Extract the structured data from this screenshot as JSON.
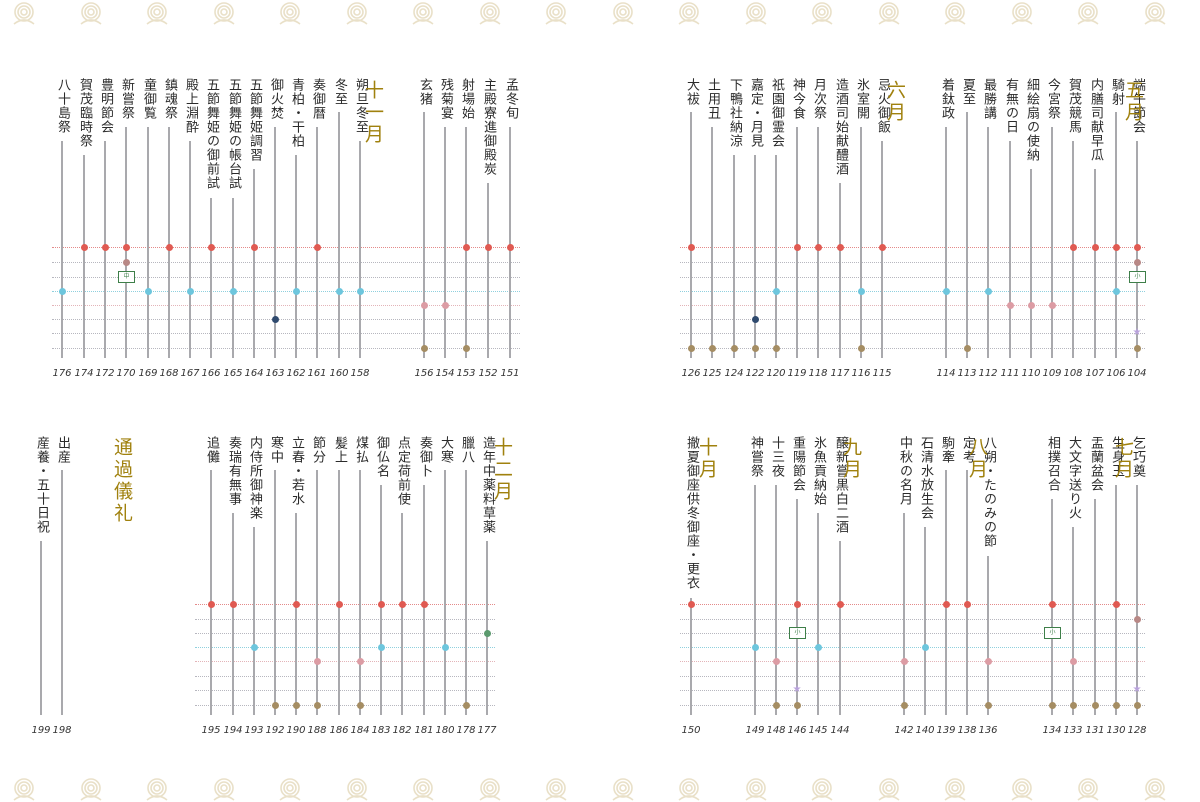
{
  "colors": {
    "accent": "#a0810e",
    "red": "#e05a52",
    "cyan": "#6dc6dd",
    "rose": "#dc9ca4",
    "tan": "#a58d63",
    "navy": "#2f4a6e",
    "mauve": "#b88886",
    "green": "#5b9a6e",
    "lavender": "#b9a2dc",
    "grid": "#b7b7bf",
    "ornament": "#e9e0c8"
  },
  "months": [
    {
      "id": "m5",
      "label": "五月"
    },
    {
      "id": "m6",
      "label": "六月"
    },
    {
      "id": "m11",
      "label": "十一月"
    },
    {
      "id": "m7",
      "label": "七月"
    },
    {
      "id": "m8",
      "label": "八月"
    },
    {
      "id": "m9",
      "label": "九月"
    },
    {
      "id": "m10",
      "label": "十月"
    },
    {
      "id": "m12",
      "label": "十二月"
    },
    {
      "id": "rites",
      "label": "通過儀礼"
    }
  ],
  "tags": {
    "chuka": "中",
    "shoka": "小"
  },
  "events": [
    {
      "name": "孟冬旬",
      "page": "151",
      "marks": [
        "red"
      ]
    },
    {
      "name": "主殿寮進御殿炭",
      "page": "152",
      "marks": [
        "red"
      ]
    },
    {
      "name": "射場始",
      "page": "153",
      "marks": [
        "red",
        "tan"
      ]
    },
    {
      "name": "残菊宴",
      "page": "154",
      "marks": [
        "rose"
      ]
    },
    {
      "name": "玄猪",
      "page": "156",
      "marks": [
        "rose",
        "tan"
      ]
    },
    {
      "name": "朔旦冬至",
      "page": "158",
      "marks": [
        "cyan"
      ]
    },
    {
      "name": "冬至",
      "page": "160",
      "marks": [
        "cyan"
      ]
    },
    {
      "name": "奏御暦",
      "page": "161",
      "marks": [
        "red"
      ]
    },
    {
      "name": "青柏・干柏",
      "page": "162",
      "marks": [
        "cyan"
      ]
    },
    {
      "name": "御火焚",
      "page": "163",
      "marks": [
        "navy"
      ]
    },
    {
      "name": "五節舞姫調習",
      "page": "164",
      "marks": [
        "red"
      ]
    },
    {
      "name": "五節舞姫の帳台試",
      "page": "165",
      "marks": [
        "cyan"
      ]
    },
    {
      "name": "五節舞姫の御前試",
      "page": "166",
      "marks": [
        "red"
      ]
    },
    {
      "name": "殿上淵酔",
      "page": "167",
      "marks": [
        "cyan"
      ]
    },
    {
      "name": "鎮魂祭",
      "page": "168",
      "marks": [
        "red"
      ]
    },
    {
      "name": "童御覧",
      "page": "169",
      "marks": [
        "cyan"
      ]
    },
    {
      "name": "新嘗祭",
      "page": "170",
      "marks": [
        "red",
        "mauve"
      ],
      "tag": "chuka"
    },
    {
      "name": "豊明節会",
      "page": "172",
      "marks": [
        "red"
      ]
    },
    {
      "name": "賀茂臨時祭",
      "page": "174",
      "marks": [
        "red"
      ]
    },
    {
      "name": "八十島祭",
      "page": "176",
      "marks": [
        "cyan"
      ]
    },
    {
      "name": "端午節会",
      "page": "104",
      "marks": [
        "red",
        "mauve",
        "lavender",
        "tan"
      ],
      "tag": "shoka"
    },
    {
      "name": "騎射",
      "page": "106",
      "marks": [
        "red",
        "cyan"
      ]
    },
    {
      "name": "内膳司献早瓜",
      "page": "107",
      "marks": [
        "red"
      ]
    },
    {
      "name": "賀茂競馬",
      "page": "108",
      "marks": [
        "red"
      ]
    },
    {
      "name": "今宮祭",
      "page": "109",
      "marks": [
        "rose"
      ]
    },
    {
      "name": "細絵扇の使納",
      "page": "110",
      "marks": [
        "rose"
      ]
    },
    {
      "name": "有無の日",
      "page": "111",
      "marks": [
        "rose"
      ]
    },
    {
      "name": "最勝講",
      "page": "112",
      "marks": [
        "cyan"
      ]
    },
    {
      "name": "夏至",
      "page": "113",
      "marks": [
        "tan"
      ]
    },
    {
      "name": "着鈦政",
      "page": "114",
      "marks": [
        "cyan"
      ]
    },
    {
      "name": "忌火御飯",
      "page": "115",
      "marks": [
        "red"
      ]
    },
    {
      "name": "氷室開",
      "page": "116",
      "marks": [
        "cyan",
        "tan"
      ]
    },
    {
      "name": "造酒司始献醴酒",
      "page": "117",
      "marks": [
        "red"
      ]
    },
    {
      "name": "月次祭",
      "page": "118",
      "marks": [
        "red"
      ]
    },
    {
      "name": "神今食",
      "page": "119",
      "marks": [
        "red"
      ]
    },
    {
      "name": "祇園御霊会",
      "page": "120",
      "marks": [
        "cyan",
        "tan"
      ]
    },
    {
      "name": "嘉定・月見",
      "page": "122",
      "marks": [
        "navy",
        "tan"
      ]
    },
    {
      "name": "下鴨社納涼",
      "page": "124",
      "marks": [
        "tan"
      ]
    },
    {
      "name": "土用丑",
      "page": "125",
      "marks": [
        "tan"
      ]
    },
    {
      "name": "大祓",
      "page": "126",
      "marks": [
        "red",
        "tan"
      ]
    },
    {
      "name": "乞巧奠",
      "page": "128",
      "marks": [
        "mauve",
        "lavender",
        "tan"
      ]
    },
    {
      "name": "生身玉",
      "page": "130",
      "marks": [
        "red",
        "tan"
      ]
    },
    {
      "name": "盂蘭盆会",
      "page": "131",
      "marks": [
        "tan"
      ]
    },
    {
      "name": "大文字送り火",
      "page": "133",
      "marks": [
        "rose",
        "tan"
      ]
    },
    {
      "name": "相撲召合",
      "page": "134",
      "marks": [
        "red",
        "tan"
      ],
      "tag": "shoka"
    },
    {
      "name": "八朔・たのみの節",
      "page": "136",
      "marks": [
        "rose",
        "tan"
      ]
    },
    {
      "name": "定考",
      "page": "138",
      "marks": [
        "red"
      ]
    },
    {
      "name": "駒牽",
      "page": "139",
      "marks": [
        "red"
      ]
    },
    {
      "name": "石清水放生会",
      "page": "140",
      "marks": [
        "cyan"
      ]
    },
    {
      "name": "中秋の名月",
      "page": "142",
      "marks": [
        "rose",
        "tan"
      ]
    },
    {
      "name": "醸新嘗黒白二酒",
      "page": "144",
      "marks": [
        "red"
      ]
    },
    {
      "name": "氷魚貢納始",
      "page": "145",
      "marks": [
        "cyan"
      ]
    },
    {
      "name": "重陽節会",
      "page": "146",
      "marks": [
        "red",
        "lavender",
        "tan"
      ],
      "tag": "shoka"
    },
    {
      "name": "十三夜",
      "page": "148",
      "marks": [
        "rose",
        "tan"
      ]
    },
    {
      "name": "神嘗祭",
      "page": "149",
      "marks": [
        "cyan"
      ]
    },
    {
      "name": "撤夏御座供冬御座・更衣",
      "page": "150",
      "marks": [
        "red"
      ]
    },
    {
      "name": "造年中薬料草薬",
      "page": "177",
      "marks": [
        "green"
      ]
    },
    {
      "name": "臘八",
      "page": "178",
      "marks": [
        "tan"
      ]
    },
    {
      "name": "大寒",
      "page": "180",
      "marks": [
        "cyan"
      ]
    },
    {
      "name": "奏御卜",
      "page": "181",
      "marks": [
        "red"
      ]
    },
    {
      "name": "点定荷前使",
      "page": "182",
      "marks": [
        "red"
      ]
    },
    {
      "name": "御仏名",
      "page": "183",
      "marks": [
        "red",
        "cyan"
      ]
    },
    {
      "name": "煤払",
      "page": "184",
      "marks": [
        "rose",
        "tan"
      ]
    },
    {
      "name": "髪上",
      "page": "186",
      "marks": [
        "red"
      ]
    },
    {
      "name": "節分",
      "page": "188",
      "marks": [
        "rose",
        "tan"
      ]
    },
    {
      "name": "立春・若水",
      "page": "190",
      "marks": [
        "red",
        "tan"
      ]
    },
    {
      "name": "寒中",
      "page": "192",
      "marks": [
        "tan"
      ]
    },
    {
      "name": "内侍所御神楽",
      "page": "193",
      "marks": [
        "cyan"
      ]
    },
    {
      "name": "奏瑞有無事",
      "page": "194",
      "marks": [
        "red"
      ]
    },
    {
      "name": "追儺",
      "page": "195",
      "marks": [
        "red"
      ]
    },
    {
      "name": "出産",
      "page": "198",
      "marks": []
    },
    {
      "name": "産養・五十日祝",
      "page": "199",
      "marks": []
    }
  ]
}
